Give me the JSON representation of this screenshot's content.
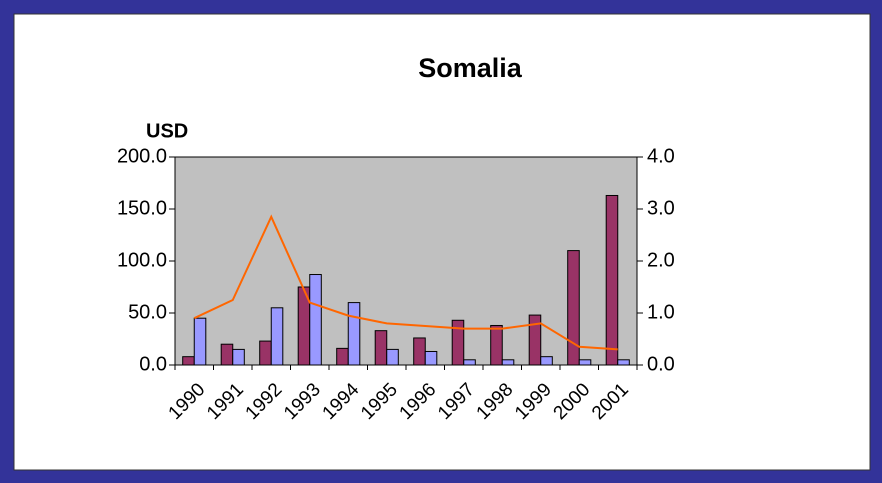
{
  "chart_data": {
    "type": "bar",
    "title": "Somalia",
    "ylabel": "USD",
    "categories": [
      "1990",
      "1991",
      "1992",
      "1993",
      "1994",
      "1995",
      "1996",
      "1997",
      "1998",
      "1999",
      "2000",
      "2001"
    ],
    "series": [
      {
        "color": "#993366",
        "values": [
          8,
          20,
          23,
          75,
          16,
          33,
          26,
          43,
          38,
          48,
          110,
          163
        ]
      },
      {
        "color": "#9999ff",
        "values": [
          45,
          15,
          55,
          87,
          60,
          15,
          13,
          5,
          5,
          8,
          5,
          5
        ]
      },
      {
        "type": "line",
        "axis": "y2",
        "color": "#ff6600",
        "values": [
          0.9,
          1.25,
          2.85,
          1.2,
          0.95,
          0.8,
          0.75,
          0.7,
          0.7,
          0.8,
          0.35,
          0.3
        ]
      }
    ],
    "ylim": [
      0,
      200
    ],
    "yticks": [
      {
        "value": 0,
        "label": "0.0"
      },
      {
        "value": 50,
        "label": "50.0"
      },
      {
        "value": 100,
        "label": "100.0"
      },
      {
        "value": 150,
        "label": "150.0"
      },
      {
        "value": 200,
        "label": "200.0"
      }
    ],
    "y2lim": [
      0,
      4
    ],
    "y2ticks": [
      {
        "value": 0,
        "label": "0.0"
      },
      {
        "value": 1,
        "label": "1.0"
      },
      {
        "value": 2,
        "label": "2.0"
      },
      {
        "value": 3,
        "label": "3.0"
      },
      {
        "value": 4,
        "label": "4.0"
      }
    ],
    "grid": false,
    "plot_background": "#c0c0c0"
  }
}
